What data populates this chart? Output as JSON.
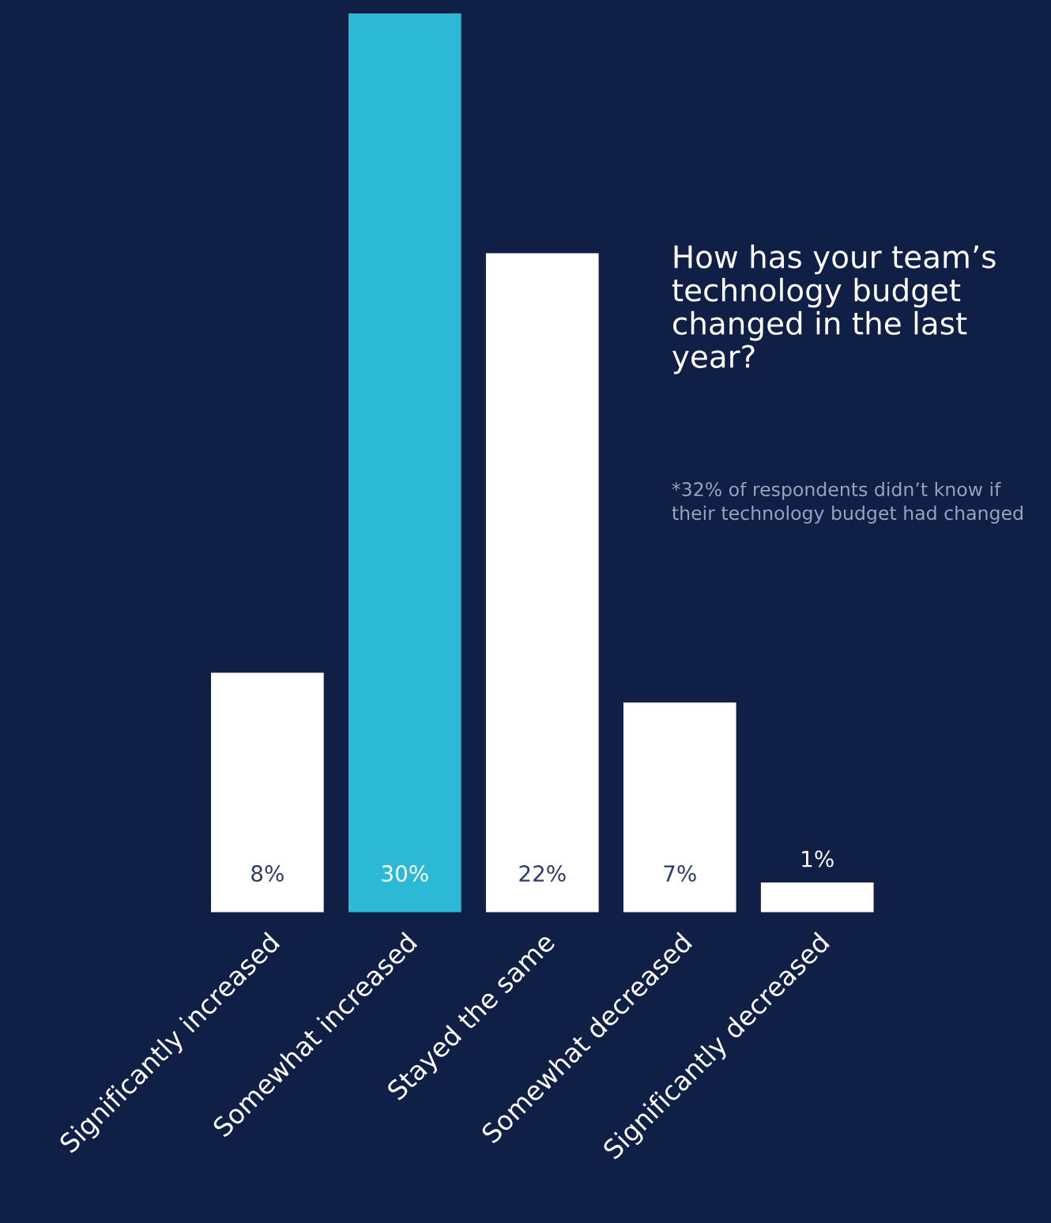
{
  "chart_data": {
    "type": "bar",
    "title": "How has your team’s technology budget changed in the last year?",
    "annotations": [
      "*32% of respondents didn’t know if their technology budget had changed"
    ],
    "categories": [
      "Significantly increased",
      "Somewhat increased",
      "Stayed the same",
      "Somewhat decreased",
      "Significantly decreased"
    ],
    "values": [
      8,
      30,
      22,
      7,
      1
    ],
    "colors": [
      "#ffffff",
      "#2cb9d6",
      "#ffffff",
      "#ffffff",
      "#ffffff"
    ],
    "value_labels": [
      "8%",
      "30%",
      "22%",
      "7%",
      "1%"
    ],
    "grid": false,
    "legend": false
  }
}
